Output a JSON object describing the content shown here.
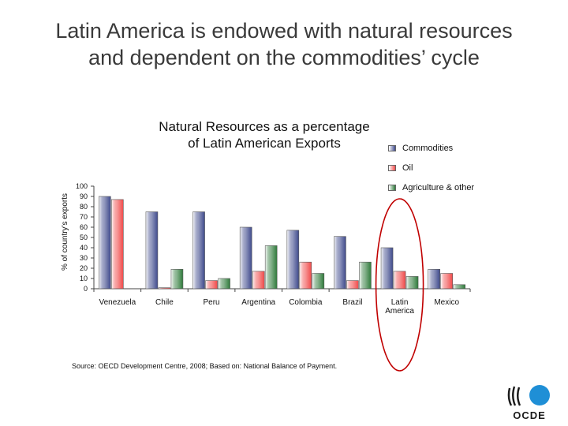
{
  "slide": {
    "title_line1": "Latin America is endowed with natural resources",
    "title_line2": "and dependent on the commodities’ cycle"
  },
  "chart_data": {
    "type": "bar",
    "title_line1": "Natural Resources as a percentage",
    "title_line2": "of Latin American Exports",
    "ylabel": "% of country's exports",
    "xlabel": "",
    "ylim": [
      0,
      100
    ],
    "yticks": [
      "0",
      "10",
      "20",
      "30",
      "40",
      "50",
      "60",
      "70",
      "80",
      "90",
      "100"
    ],
    "categories": [
      "Venezuela",
      "Chile",
      "Peru",
      "Argentina",
      "Colombia",
      "Brazil",
      "Latin America",
      "Mexico"
    ],
    "series": [
      {
        "name": "Commodities",
        "color": "#3f4a8c",
        "values": [
          90,
          75,
          75,
          60,
          57,
          51,
          40,
          19
        ]
      },
      {
        "name": "Oil",
        "color": "#f04a4a",
        "values": [
          87,
          1,
          8,
          17,
          26,
          8,
          17,
          15
        ]
      },
      {
        "name": "Agriculture & other",
        "color": "#2e7a3a",
        "values": [
          0,
          19,
          10,
          42,
          15,
          26,
          12,
          4
        ]
      }
    ],
    "legend_position": "top-right",
    "annotation": "red ellipse highlighting Latin America",
    "highlight_color": "#c00000"
  },
  "source": {
    "text": "Source: OECD Development Centre, 2008; Based on: National Balance of Payment."
  },
  "logo": {
    "text": "OCDE",
    "primary_color": "#1f8fd6"
  }
}
